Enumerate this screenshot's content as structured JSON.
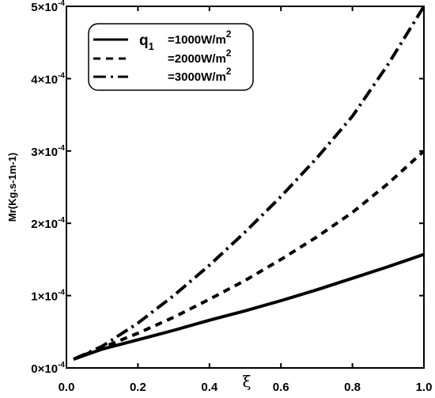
{
  "chart_data": {
    "type": "line",
    "xlabel": "ξ",
    "ylabel": "Mr(Kg.s-1m-1)",
    "xlim": [
      0,
      1
    ],
    "ylim": [
      0,
      0.0005
    ],
    "x_ticks": [
      "0.0",
      "0.2",
      "0.4",
      "0.6",
      "0.8",
      "1.0"
    ],
    "y_ticks": [
      {
        "mantissa": "0×10",
        "exp": "-4"
      },
      {
        "mantissa": "1×10",
        "exp": "-4"
      },
      {
        "mantissa": "2×10",
        "exp": "-4"
      },
      {
        "mantissa": "3×10",
        "exp": "-4"
      },
      {
        "mantissa": "4×10",
        "exp": "-4"
      },
      {
        "mantissa": "5×10",
        "exp": "-4"
      }
    ],
    "legend": {
      "position": "top-left",
      "symbol": "q",
      "subscript": "1",
      "entries": [
        {
          "label": "=1000W/m",
          "sup": "2",
          "style": "solid"
        },
        {
          "label": "=2000W/m",
          "sup": "2",
          "style": "dashed"
        },
        {
          "label": "=3000W/m",
          "sup": "2",
          "style": "dashdot"
        }
      ]
    },
    "series": [
      {
        "style": "solid",
        "x": [
          0.02,
          0.1,
          0.2,
          0.3,
          0.4,
          0.5,
          0.6,
          0.7,
          0.8,
          0.9,
          1.0
        ],
        "y": [
          1.2e-05,
          2.6e-05,
          3.9e-05,
          5.2e-05,
          6.6e-05,
          7.9e-05,
          9.3e-05,
          0.000108,
          0.000124,
          0.00014,
          0.000157
        ]
      },
      {
        "style": "dashed",
        "x": [
          0.02,
          0.1,
          0.2,
          0.3,
          0.4,
          0.5,
          0.6,
          0.7,
          0.8,
          0.9,
          1.0
        ],
        "y": [
          1.2e-05,
          2.8e-05,
          4.8e-05,
          7e-05,
          9.5e-05,
          0.000121,
          0.00015,
          0.000181,
          0.000215,
          0.000255,
          0.0003
        ]
      },
      {
        "style": "dashdot",
        "x": [
          0.02,
          0.1,
          0.2,
          0.3,
          0.4,
          0.5,
          0.6,
          0.7,
          0.8,
          0.9,
          1.0
        ],
        "y": [
          1.2e-05,
          3e-05,
          6.2e-05,
          0.0001,
          0.000142,
          0.000188,
          0.000237,
          0.00029,
          0.000348,
          0.00042,
          0.0005
        ]
      }
    ]
  }
}
